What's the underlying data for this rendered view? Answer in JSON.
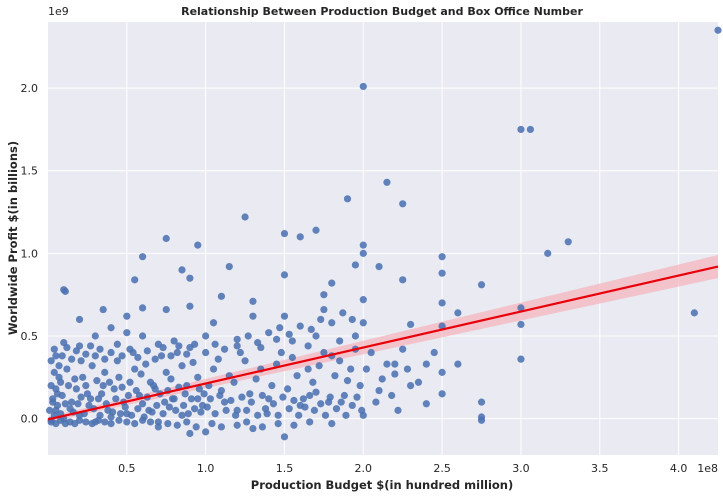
{
  "chart_data": {
    "type": "scatter",
    "title": "Relationship Between Production Budget and Box Office Number",
    "xlabel": "Production Budget $(in hundred million)",
    "ylabel": "Worldwide Profit $(in billions)",
    "x_offset_label": "1e8",
    "y_offset_label": "1e9",
    "xlim": [
      0.0,
      4.25
    ],
    "ylim": [
      -0.22,
      2.4
    ],
    "xticks": [
      "0.5",
      "1.0",
      "1.5",
      "2.0",
      "2.5",
      "3.0",
      "3.5",
      "4.0"
    ],
    "yticks": [
      "0.0",
      "0.5",
      "1.0",
      "1.5",
      "2.0"
    ],
    "xtick_values": [
      0.5,
      1.0,
      1.5,
      2.0,
      2.5,
      3.0,
      3.5,
      4.0
    ],
    "ytick_values": [
      0.0,
      0.5,
      1.0,
      1.5,
      2.0
    ],
    "grid": true,
    "point_color": "#4c72b0",
    "fit_color": "#e8000b",
    "band_color": "#f4b6bd",
    "regression": {
      "x": [
        0.0,
        4.25
      ],
      "y": [
        -0.005,
        0.92
      ],
      "ci_lower": [
        -0.02,
        0.85
      ],
      "ci_upper": [
        0.01,
        0.99
      ]
    },
    "points": [
      [
        4.25,
        2.35
      ],
      [
        2.0,
        2.01
      ],
      [
        3.0,
        1.75
      ],
      [
        3.06,
        1.75
      ],
      [
        2.15,
        1.43
      ],
      [
        1.9,
        1.33
      ],
      [
        2.25,
        1.3
      ],
      [
        1.25,
        1.22
      ],
      [
        1.7,
        1.14
      ],
      [
        1.5,
        1.12
      ],
      [
        1.6,
        1.1
      ],
      [
        0.75,
        1.09
      ],
      [
        3.3,
        1.07
      ],
      [
        2.0,
        1.05
      ],
      [
        0.95,
        1.05
      ],
      [
        2.0,
        1.0
      ],
      [
        3.17,
        1.0
      ],
      [
        1.95,
        0.93
      ],
      [
        2.5,
        0.98
      ],
      [
        2.1,
        0.92
      ],
      [
        2.5,
        0.88
      ],
      [
        1.5,
        0.87
      ],
      [
        1.15,
        0.92
      ],
      [
        0.6,
        0.98
      ],
      [
        0.85,
        0.9
      ],
      [
        2.25,
        0.84
      ],
      [
        0.9,
        0.85
      ],
      [
        0.55,
        0.84
      ],
      [
        2.75,
        0.81
      ],
      [
        1.8,
        0.82
      ],
      [
        2.5,
        0.7
      ],
      [
        2.0,
        0.72
      ],
      [
        1.75,
        0.75
      ],
      [
        1.3,
        0.71
      ],
      [
        1.1,
        0.74
      ],
      [
        0.1,
        0.78
      ],
      [
        0.11,
        0.77
      ],
      [
        0.6,
        0.67
      ],
      [
        0.75,
        0.66
      ],
      [
        0.9,
        0.68
      ],
      [
        4.1,
        0.64
      ],
      [
        3.0,
        0.67
      ],
      [
        2.6,
        0.64
      ],
      [
        2.3,
        0.57
      ],
      [
        2.0,
        0.58
      ],
      [
        1.75,
        0.66
      ],
      [
        1.5,
        0.62
      ],
      [
        1.3,
        0.62
      ],
      [
        1.05,
        0.58
      ],
      [
        0.5,
        0.62
      ],
      [
        0.2,
        0.6
      ],
      [
        0.35,
        0.66
      ],
      [
        3.0,
        0.57
      ],
      [
        2.75,
        0.1
      ],
      [
        2.75,
        0.01
      ],
      [
        2.75,
        -0.01
      ],
      [
        3.0,
        0.36
      ],
      [
        2.6,
        0.33
      ],
      [
        2.5,
        0.28
      ],
      [
        2.4,
        0.09
      ],
      [
        2.3,
        0.2
      ],
      [
        2.2,
        0.33
      ],
      [
        2.1,
        0.17
      ],
      [
        2.25,
        0.42
      ],
      [
        2.4,
        0.33
      ],
      [
        1.95,
        0.5
      ],
      [
        1.85,
        0.47
      ],
      [
        1.8,
        0.38
      ],
      [
        1.7,
        0.5
      ],
      [
        1.65,
        0.44
      ],
      [
        1.55,
        0.47
      ],
      [
        1.45,
        0.48
      ],
      [
        1.35,
        0.43
      ],
      [
        1.2,
        0.48
      ],
      [
        1.0,
        0.5
      ],
      [
        0.9,
        0.43
      ],
      [
        0.8,
        0.47
      ],
      [
        0.7,
        0.45
      ],
      [
        0.6,
        0.5
      ],
      [
        0.5,
        0.52
      ],
      [
        0.4,
        0.55
      ],
      [
        0.3,
        0.5
      ],
      [
        0.2,
        0.44
      ],
      [
        0.1,
        0.46
      ],
      [
        0.05,
        0.38
      ],
      [
        1.5,
        -0.11
      ],
      [
        1.0,
        -0.08
      ],
      [
        0.9,
        -0.09
      ],
      [
        1.3,
        -0.06
      ],
      [
        1.8,
        -0.03
      ],
      [
        2.0,
        0.02
      ],
      [
        2.5,
        0.15
      ],
      [
        2.2,
        0.27
      ],
      [
        1.9,
        0.23
      ],
      [
        1.7,
        0.16
      ],
      [
        1.6,
        0.08
      ],
      [
        1.4,
        0.12
      ],
      [
        1.2,
        0.05
      ],
      [
        1.1,
        0.17
      ],
      [
        0.95,
        0.12
      ],
      [
        0.85,
        0.02
      ],
      [
        0.7,
        -0.02
      ],
      [
        0.6,
        0.09
      ],
      [
        0.5,
        0.03
      ],
      [
        0.4,
        0.01
      ],
      [
        0.3,
        -0.02
      ],
      [
        0.2,
        0.02
      ],
      [
        0.1,
        0.0
      ],
      [
        0.05,
        0.05
      ],
      [
        0.15,
        0.1
      ],
      [
        0.25,
        0.15
      ],
      [
        0.35,
        0.2
      ],
      [
        0.45,
        0.25
      ],
      [
        0.55,
        0.3
      ],
      [
        0.65,
        0.22
      ],
      [
        0.75,
        0.28
      ],
      [
        0.85,
        0.32
      ],
      [
        0.95,
        0.25
      ],
      [
        1.05,
        0.3
      ],
      [
        1.15,
        0.26
      ],
      [
        1.25,
        0.35
      ],
      [
        1.35,
        0.3
      ],
      [
        1.45,
        0.33
      ],
      [
        1.55,
        0.37
      ],
      [
        1.65,
        0.3
      ],
      [
        1.75,
        0.4
      ],
      [
        1.85,
        0.35
      ],
      [
        1.95,
        0.42
      ],
      [
        2.05,
        0.4
      ],
      [
        2.15,
        0.33
      ],
      [
        0.02,
        0.2
      ],
      [
        0.03,
        0.1
      ],
      [
        0.04,
        0.28
      ],
      [
        0.06,
        0.15
      ],
      [
        0.08,
        0.22
      ],
      [
        0.12,
        0.3
      ],
      [
        0.14,
        0.06
      ],
      [
        0.18,
        0.18
      ],
      [
        0.22,
        0.25
      ],
      [
        0.26,
        0.08
      ],
      [
        0.28,
        0.32
      ],
      [
        0.32,
        0.12
      ],
      [
        0.36,
        0.28
      ],
      [
        0.38,
        0.05
      ],
      [
        0.42,
        0.18
      ],
      [
        0.44,
        0.35
      ],
      [
        0.48,
        0.1
      ],
      [
        0.52,
        0.22
      ],
      [
        0.54,
        0.4
      ],
      [
        0.58,
        0.14
      ],
      [
        0.62,
        0.33
      ],
      [
        0.64,
        0.05
      ],
      [
        0.68,
        0.18
      ],
      [
        0.72,
        0.38
      ],
      [
        0.74,
        0.1
      ],
      [
        0.78,
        0.24
      ],
      [
        0.8,
        0.12
      ],
      [
        0.82,
        0.4
      ],
      [
        0.88,
        0.2
      ],
      [
        0.92,
        0.34
      ],
      [
        0.98,
        0.08
      ],
      [
        1.02,
        0.2
      ],
      [
        1.08,
        0.36
      ],
      [
        1.12,
        0.1
      ],
      [
        1.18,
        0.22
      ],
      [
        1.22,
        0.4
      ],
      [
        1.28,
        0.15
      ],
      [
        1.32,
        0.24
      ],
      [
        1.38,
        0.06
      ],
      [
        1.42,
        0.2
      ],
      [
        1.48,
        0.4
      ],
      [
        1.52,
        0.18
      ],
      [
        1.58,
        0.26
      ],
      [
        1.62,
        0.12
      ],
      [
        1.68,
        0.22
      ],
      [
        1.72,
        0.32
      ],
      [
        1.78,
        0.1
      ],
      [
        1.82,
        0.26
      ],
      [
        1.88,
        0.14
      ],
      [
        1.92,
        0.3
      ],
      [
        1.98,
        0.2
      ],
      [
        2.02,
        0.3
      ],
      [
        2.08,
        0.1
      ],
      [
        2.12,
        0.24
      ],
      [
        2.18,
        0.14
      ],
      [
        2.22,
        0.05
      ],
      [
        2.28,
        0.3
      ],
      [
        2.35,
        0.22
      ],
      [
        2.45,
        0.4
      ],
      [
        2.5,
        0.56
      ],
      [
        0.01,
        0.05
      ],
      [
        0.02,
        -0.01
      ],
      [
        0.03,
        0.12
      ],
      [
        0.04,
        0.02
      ],
      [
        0.05,
        0.18
      ],
      [
        0.06,
        0.08
      ],
      [
        0.07,
        0.25
      ],
      [
        0.08,
        0.03
      ],
      [
        0.09,
        0.14
      ],
      [
        0.11,
        0.09
      ],
      [
        0.13,
        0.2
      ],
      [
        0.16,
        0.04
      ],
      [
        0.17,
        0.24
      ],
      [
        0.19,
        0.09
      ],
      [
        0.21,
        0.13
      ],
      [
        0.23,
        0.03
      ],
      [
        0.24,
        0.2
      ],
      [
        0.27,
        0.12
      ],
      [
        0.29,
        0.06
      ],
      [
        0.31,
        0.23
      ],
      [
        0.33,
        0.02
      ],
      [
        0.34,
        0.15
      ],
      [
        0.37,
        0.09
      ],
      [
        0.39,
        0.22
      ],
      [
        0.41,
        0.04
      ],
      [
        0.43,
        0.12
      ],
      [
        0.46,
        0.03
      ],
      [
        0.47,
        0.19
      ],
      [
        0.49,
        0.07
      ],
      [
        0.51,
        0.14
      ],
      [
        0.53,
        0.02
      ],
      [
        0.56,
        0.17
      ],
      [
        0.57,
        0.06
      ],
      [
        0.59,
        0.27
      ],
      [
        0.61,
        0.01
      ],
      [
        0.63,
        0.13
      ],
      [
        0.66,
        0.04
      ],
      [
        0.67,
        0.2
      ],
      [
        0.69,
        0.08
      ],
      [
        0.71,
        0.15
      ],
      [
        0.73,
        0.03
      ],
      [
        0.76,
        0.17
      ],
      [
        0.77,
        0.07
      ],
      [
        0.79,
        0.12
      ],
      [
        0.81,
        0.05
      ],
      [
        0.83,
        0.19
      ],
      [
        0.86,
        0.08
      ],
      [
        0.87,
        0.15
      ],
      [
        0.89,
        0.03
      ],
      [
        0.91,
        0.12
      ],
      [
        0.93,
        0.06
      ],
      [
        0.96,
        0.18
      ],
      [
        0.97,
        0.04
      ],
      [
        0.99,
        0.15
      ],
      [
        1.01,
        0.07
      ],
      [
        1.03,
        0.12
      ],
      [
        1.06,
        0.03
      ],
      [
        1.09,
        0.14
      ],
      [
        1.13,
        0.05
      ],
      [
        1.16,
        0.11
      ],
      [
        1.19,
        0.02
      ],
      [
        1.23,
        0.13
      ],
      [
        1.26,
        0.05
      ],
      [
        1.29,
        0.1
      ],
      [
        1.33,
        0.02
      ],
      [
        1.36,
        0.14
      ],
      [
        1.39,
        0.03
      ],
      [
        1.43,
        0.09
      ],
      [
        1.46,
        0.02
      ],
      [
        1.49,
        0.13
      ],
      [
        1.53,
        0.06
      ],
      [
        1.56,
        0.11
      ],
      [
        1.59,
        0.02
      ],
      [
        1.63,
        0.07
      ],
      [
        1.66,
        0.14
      ],
      [
        1.69,
        0.05
      ],
      [
        1.73,
        0.09
      ],
      [
        1.76,
        0.02
      ],
      [
        1.79,
        0.13
      ],
      [
        1.83,
        0.06
      ],
      [
        1.86,
        0.1
      ],
      [
        1.89,
        0.02
      ],
      [
        1.93,
        0.08
      ],
      [
        1.96,
        0.13
      ],
      [
        1.99,
        0.05
      ],
      [
        0.02,
        0.35
      ],
      [
        0.04,
        0.42
      ],
      [
        0.07,
        0.32
      ],
      [
        0.09,
        0.38
      ],
      [
        0.12,
        0.43
      ],
      [
        0.15,
        0.36
      ],
      [
        0.18,
        0.41
      ],
      [
        0.21,
        0.35
      ],
      [
        0.24,
        0.39
      ],
      [
        0.27,
        0.44
      ],
      [
        0.3,
        0.38
      ],
      [
        0.33,
        0.42
      ],
      [
        0.36,
        0.36
      ],
      [
        0.4,
        0.4
      ],
      [
        0.44,
        0.45
      ],
      [
        0.47,
        0.38
      ],
      [
        0.52,
        0.42
      ],
      [
        0.57,
        0.37
      ],
      [
        0.63,
        0.41
      ],
      [
        0.68,
        0.36
      ],
      [
        0.73,
        0.43
      ],
      [
        0.78,
        0.38
      ],
      [
        0.83,
        0.44
      ],
      [
        0.88,
        0.39
      ],
      [
        0.93,
        0.45
      ],
      [
        1.0,
        0.4
      ],
      [
        1.06,
        0.45
      ],
      [
        1.12,
        0.42
      ],
      [
        1.2,
        0.44
      ],
      [
        1.27,
        0.5
      ],
      [
        1.33,
        0.46
      ],
      [
        1.4,
        0.52
      ],
      [
        1.47,
        0.55
      ],
      [
        1.53,
        0.51
      ],
      [
        1.6,
        0.56
      ],
      [
        1.67,
        0.54
      ],
      [
        1.73,
        0.6
      ],
      [
        1.8,
        0.58
      ],
      [
        1.87,
        0.64
      ],
      [
        1.93,
        0.6
      ],
      [
        0.02,
        -0.02
      ],
      [
        0.05,
        -0.03
      ],
      [
        0.08,
        -0.01
      ],
      [
        0.11,
        -0.03
      ],
      [
        0.14,
        -0.02
      ],
      [
        0.17,
        -0.03
      ],
      [
        0.2,
        -0.01
      ],
      [
        0.24,
        -0.02
      ],
      [
        0.28,
        -0.03
      ],
      [
        0.32,
        -0.01
      ],
      [
        0.36,
        -0.02
      ],
      [
        0.4,
        -0.03
      ],
      [
        0.45,
        -0.01
      ],
      [
        0.5,
        -0.02
      ],
      [
        0.55,
        -0.03
      ],
      [
        0.6,
        -0.01
      ],
      [
        0.65,
        -0.02
      ],
      [
        0.7,
        -0.05
      ],
      [
        0.76,
        -0.03
      ],
      [
        0.82,
        -0.04
      ],
      [
        0.88,
        -0.02
      ],
      [
        0.94,
        -0.05
      ],
      [
        1.04,
        -0.03
      ],
      [
        1.1,
        -0.05
      ],
      [
        1.2,
        -0.04
      ],
      [
        1.26,
        -0.02
      ],
      [
        1.36,
        -0.05
      ],
      [
        1.46,
        -0.03
      ],
      [
        1.56,
        -0.04
      ],
      [
        1.66,
        -0.02
      ]
    ]
  }
}
